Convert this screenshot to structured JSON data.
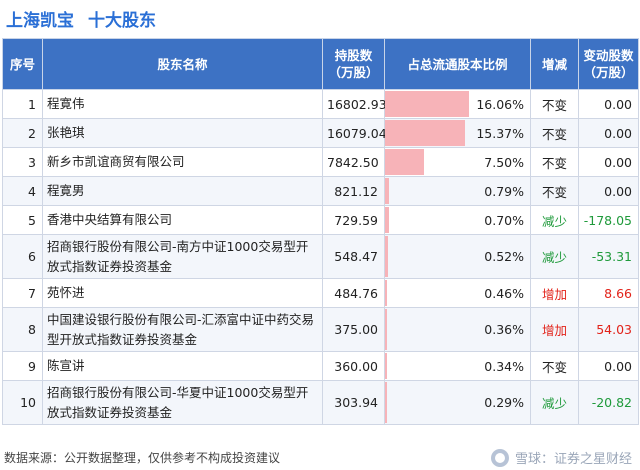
{
  "title": {
    "company": "上海凯宝",
    "subject": "十大股东"
  },
  "table": {
    "headers": {
      "index": "序号",
      "name": "股东名称",
      "shares": "持股数\n（万股）",
      "ratio": "占总流通股本比例",
      "change": "增减",
      "delta": "变动股数\n（万股）"
    },
    "rows": [
      {
        "index": "1",
        "name": "程寛伟",
        "shares": "16802.93",
        "ratio": "16.06%",
        "ratio_value": 16.06,
        "change": "不变",
        "change_type": "same",
        "delta": "0.00"
      },
      {
        "index": "2",
        "name": "张艳琪",
        "shares": "16079.04",
        "ratio": "15.37%",
        "ratio_value": 15.37,
        "change": "不变",
        "change_type": "same",
        "delta": "0.00"
      },
      {
        "index": "3",
        "name": "新乡市凯谊商贸有限公司",
        "shares": "7842.50",
        "ratio": "7.50%",
        "ratio_value": 7.5,
        "change": "不变",
        "change_type": "same",
        "delta": "0.00"
      },
      {
        "index": "4",
        "name": "程寛男",
        "shares": "821.12",
        "ratio": "0.79%",
        "ratio_value": 0.79,
        "change": "不变",
        "change_type": "same",
        "delta": "0.00"
      },
      {
        "index": "5",
        "name": "香港中央结算有限公司",
        "shares": "729.59",
        "ratio": "0.70%",
        "ratio_value": 0.7,
        "change": "减少",
        "change_type": "down",
        "delta": "-178.05"
      },
      {
        "index": "6",
        "name": "招商银行股份有限公司-南方中证1000交易型开放式指数证券投资基金",
        "shares": "548.47",
        "ratio": "0.52%",
        "ratio_value": 0.52,
        "change": "减少",
        "change_type": "down",
        "delta": "-53.31"
      },
      {
        "index": "7",
        "name": "苑怀进",
        "shares": "484.76",
        "ratio": "0.46%",
        "ratio_value": 0.46,
        "change": "增加",
        "change_type": "up",
        "delta": "8.66"
      },
      {
        "index": "8",
        "name": "中国建设银行股份有限公司-汇添富中证中药交易型开放式指数证券投资基金",
        "shares": "375.00",
        "ratio": "0.36%",
        "ratio_value": 0.36,
        "change": "增加",
        "change_type": "up",
        "delta": "54.03"
      },
      {
        "index": "9",
        "name": "陈宣讲",
        "shares": "360.00",
        "ratio": "0.34%",
        "ratio_value": 0.34,
        "change": "不变",
        "change_type": "same",
        "delta": "0.00"
      },
      {
        "index": "10",
        "name": "招商银行股份有限公司-华夏中证1000交易型开放式指数证券投资基金",
        "shares": "303.94",
        "ratio": "0.29%",
        "ratio_value": 0.29,
        "change": "减少",
        "change_type": "down",
        "delta": "-20.82"
      }
    ]
  },
  "footer": {
    "source": "数据来源：公开数据整理，仅供参考不构成投资建议"
  },
  "brand": {
    "text": "雪球：证券之星财经"
  },
  "colors": {
    "header_bg": "#3d72c4",
    "bar": "#f7b3b8",
    "up": "#e2231a",
    "down": "#1f9a3b",
    "title": "#2a6fd6"
  }
}
